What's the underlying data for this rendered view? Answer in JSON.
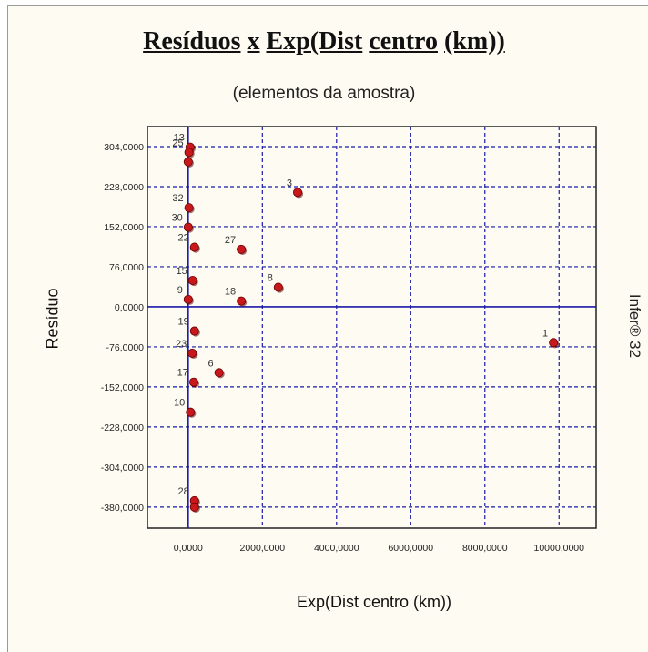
{
  "title_parts": [
    "Resíduos",
    "x",
    "Exp(Dist",
    "centro",
    "(km))"
  ],
  "watermark": "Infer® 32",
  "colors": {
    "point": "#c8181c",
    "grid": "#1a1aa8",
    "axis": "#1a1aa8",
    "frame": "#fdfbf2"
  },
  "chart_data": {
    "type": "scatter",
    "title": "Resíduos x Exp(Dist centro (km))",
    "subtitle": "(elementos da amostra)",
    "xlabel": "Exp(Dist centro (km))",
    "ylabel": "Resíduo",
    "xlim": [
      -1100,
      11000
    ],
    "ylim": [
      -420,
      342
    ],
    "grid": true,
    "xticks": [
      0,
      2000,
      4000,
      6000,
      8000,
      10000
    ],
    "xtick_labels": [
      "0,0000",
      "2000,0000",
      "4000,0000",
      "6000,0000",
      "8000,0000",
      "10000,0000"
    ],
    "yticks": [
      304,
      228,
      152,
      76,
      0,
      -76,
      -152,
      -228,
      -304,
      -380
    ],
    "ytick_labels": [
      "304,0000",
      "228,0000",
      "152,0000",
      "76,0000",
      "0,0000",
      "-76,0000",
      "-152,0000",
      "-228,0000",
      "-304,0000",
      "-380,0000"
    ],
    "points": [
      {
        "label": "13",
        "x": 50,
        "y": 303
      },
      {
        "label": "25",
        "x": 20,
        "y": 293
      },
      {
        "label": "",
        "x": 0,
        "y": 275
      },
      {
        "label": "3",
        "x": 2950,
        "y": 217
      },
      {
        "label": "32",
        "x": 20,
        "y": 188
      },
      {
        "label": "30",
        "x": 0,
        "y": 151
      },
      {
        "label": "22",
        "x": 170,
        "y": 113
      },
      {
        "label": "27",
        "x": 1430,
        "y": 109
      },
      {
        "label": "15",
        "x": 120,
        "y": 50
      },
      {
        "label": "8",
        "x": 2430,
        "y": 37
      },
      {
        "label": "9",
        "x": 0,
        "y": 14
      },
      {
        "label": "18",
        "x": 1430,
        "y": 11
      },
      {
        "label": "19",
        "x": 170,
        "y": -46
      },
      {
        "label": "1",
        "x": 9850,
        "y": -68
      },
      {
        "label": "23",
        "x": 110,
        "y": -88
      },
      {
        "label": "6",
        "x": 830,
        "y": -125
      },
      {
        "label": "17",
        "x": 150,
        "y": -143
      },
      {
        "label": "10",
        "x": 60,
        "y": -200
      },
      {
        "label": "28",
        "x": 170,
        "y": -368
      },
      {
        "label": "",
        "x": 170,
        "y": -380
      }
    ]
  }
}
